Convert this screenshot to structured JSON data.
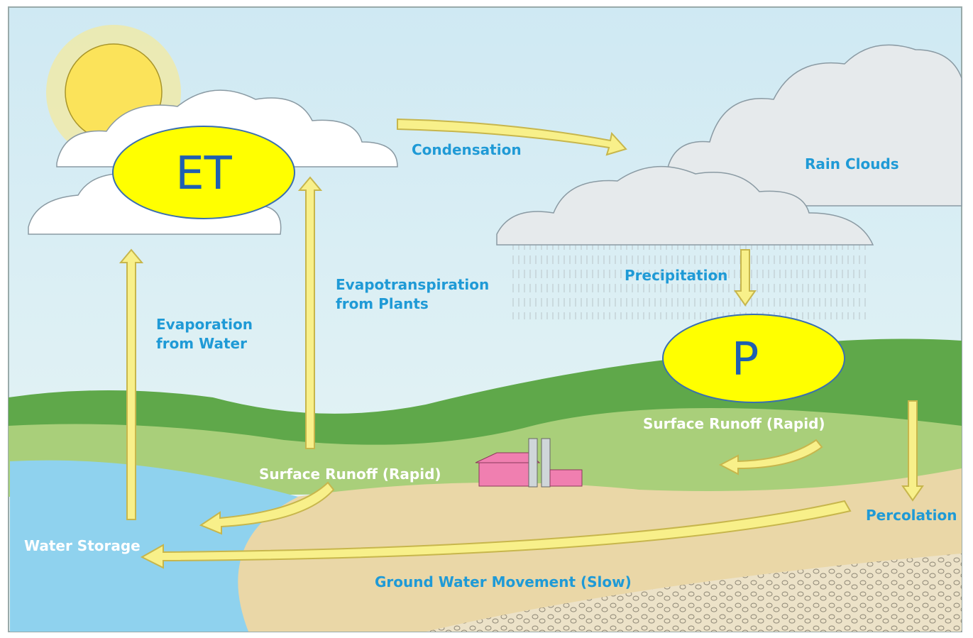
{
  "badges": {
    "et": "ET",
    "p": "P"
  },
  "labels": {
    "condensation": "Condensation",
    "rain_clouds": "Rain Clouds",
    "precipitation": "Precipitation",
    "evapotranspiration": [
      "Evapotranspiration",
      "from Plants"
    ],
    "evaporation": [
      "Evaporation",
      "from Water"
    ],
    "surface_runoff_right": "Surface Runoff (Rapid)",
    "surface_runoff_left": "Surface Runoff (Rapid)",
    "percolation": "Percolation",
    "water_storage": "Water Storage",
    "ground_water": "Ground Water Movement (Slow)"
  }
}
